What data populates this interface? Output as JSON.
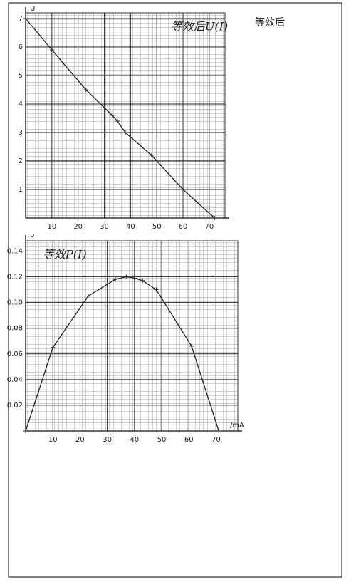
{
  "page_note": "等效后",
  "chart_data": [
    {
      "type": "line",
      "title": "等效后U(I)",
      "x_label": "I",
      "y_label": "U",
      "x": [
        0,
        10,
        23,
        33,
        35,
        38,
        48,
        60,
        72
      ],
      "values": [
        7,
        5.9,
        4.5,
        3.6,
        3.4,
        3.0,
        2.2,
        1.0,
        0
      ],
      "color": "#222",
      "xlim": [
        0,
        76
      ],
      "ylim": [
        0,
        7.2
      ],
      "xticks": [
        10,
        20,
        30,
        40,
        50,
        60,
        70
      ],
      "yticks": [
        1,
        2,
        3,
        4,
        5,
        6,
        7
      ],
      "grid": true
    },
    {
      "type": "line",
      "title": "等效P(I)",
      "x_label": "I/mA",
      "y_label": "P",
      "x": [
        0,
        10,
        23,
        33,
        37,
        40,
        43,
        48,
        61,
        71
      ],
      "values": [
        0,
        0.065,
        0.105,
        0.118,
        0.12,
        0.119,
        0.117,
        0.11,
        0.066,
        0
      ],
      "color": "#222",
      "xlim": [
        0,
        78
      ],
      "ylim": [
        0,
        0.148
      ],
      "xticks": [
        10,
        20,
        30,
        40,
        50,
        60,
        70
      ],
      "yticks": [
        0.02,
        0.04,
        0.06,
        0.08,
        {
          "value": 0.1,
          "label": "0.10"
        },
        0.12,
        0.14
      ],
      "grid": true
    }
  ]
}
